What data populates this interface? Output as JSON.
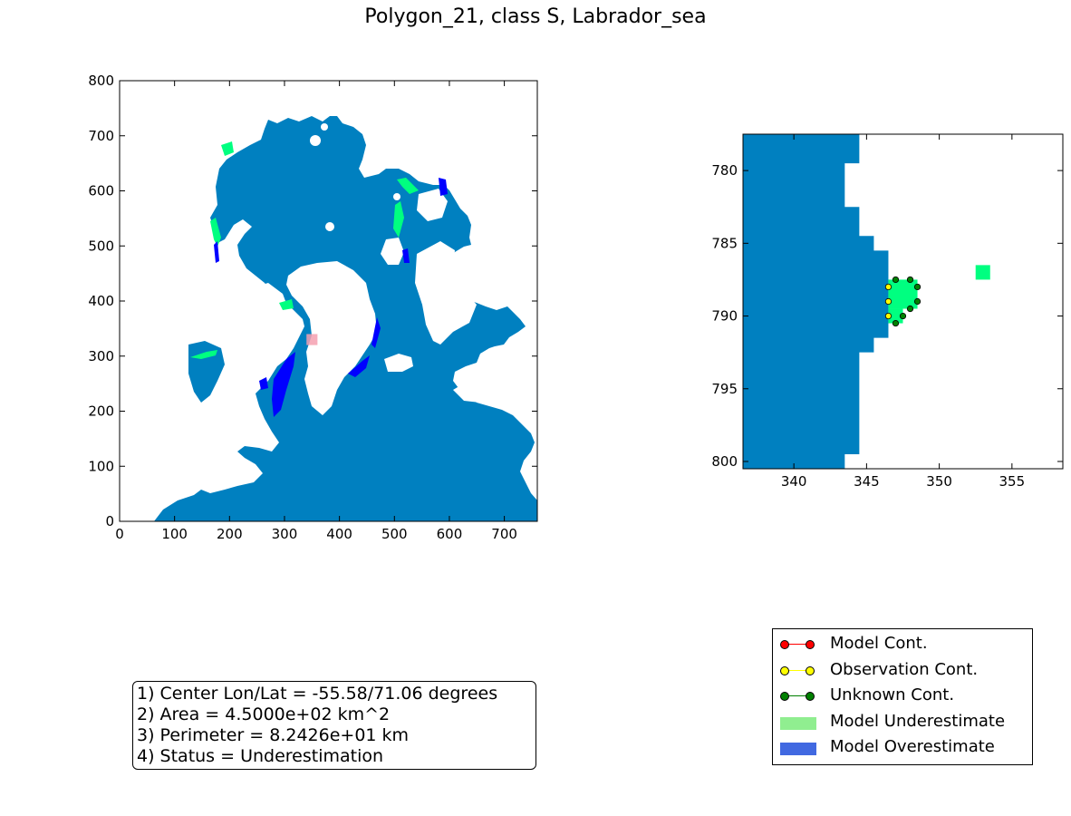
{
  "title": "Polygon_21, class S, Labrador_sea",
  "colors": {
    "ocean": "#0080c0",
    "underestimate": "#00ff80",
    "overestimate": "#0000ff",
    "marker": "#f4a0b0",
    "legend_model_cont": "#ff0000",
    "legend_obs_cont": "#ffff00",
    "legend_unknown_cont": "#008000",
    "legend_model_under": "#90ee90",
    "legend_model_over": "#4169e1"
  },
  "chart_data": [
    {
      "type": "heatmap",
      "name": "overview-map",
      "xlim": [
        0,
        760
      ],
      "ylim": [
        0,
        800
      ],
      "xticks": [
        0,
        100,
        200,
        300,
        400,
        500,
        600,
        700
      ],
      "yticks": [
        0,
        100,
        200,
        300,
        400,
        500,
        600,
        700,
        800
      ],
      "grid": false,
      "highlight_box": {
        "x": [
          340,
          360
        ],
        "y": [
          320,
          340
        ]
      }
    },
    {
      "type": "heatmap",
      "name": "zoom-map",
      "xlim": [
        336.5,
        358.5
      ],
      "ylim": [
        800.5,
        777.5
      ],
      "xticks": [
        340,
        345,
        350,
        355
      ],
      "yticks": [
        780,
        785,
        790,
        795,
        800
      ],
      "grid": false,
      "green_patches": [
        {
          "x": [
            346.5,
            348.5
          ],
          "y": [
            787.5,
            789.5
          ]
        },
        {
          "x": [
            346.5,
            347.5
          ],
          "y": [
            789.5,
            790.5
          ]
        },
        {
          "x": [
            352.5,
            353.5
          ],
          "y": [
            786.5,
            787.5
          ]
        }
      ],
      "contour_points": [
        {
          "x": 347.0,
          "y": 787.5,
          "kind": "unknown"
        },
        {
          "x": 348.0,
          "y": 787.5,
          "kind": "unknown"
        },
        {
          "x": 348.5,
          "y": 788.0,
          "kind": "unknown"
        },
        {
          "x": 348.5,
          "y": 789.0,
          "kind": "unknown"
        },
        {
          "x": 348.0,
          "y": 789.5,
          "kind": "unknown"
        },
        {
          "x": 347.5,
          "y": 790.0,
          "kind": "unknown"
        },
        {
          "x": 347.0,
          "y": 790.5,
          "kind": "unknown"
        },
        {
          "x": 346.5,
          "y": 790.0,
          "kind": "observation"
        },
        {
          "x": 346.5,
          "y": 789.0,
          "kind": "observation"
        },
        {
          "x": 346.5,
          "y": 788.0,
          "kind": "observation"
        }
      ]
    }
  ],
  "info": {
    "lines": [
      "1) Center Lon/Lat = -55.58/71.06 degrees",
      "2) Area = 4.5000e+02 km^2",
      "3) Perimeter = 8.2426e+01 km",
      "4) Status = Underestimation"
    ]
  },
  "legend": {
    "entries": [
      {
        "label": "Model Cont.",
        "kind": "line",
        "color_key": "legend_model_cont"
      },
      {
        "label": "Observation Cont.",
        "kind": "line",
        "color_key": "legend_obs_cont"
      },
      {
        "label": "Unknown Cont.",
        "kind": "line",
        "color_key": "legend_unknown_cont"
      },
      {
        "label": "Model Underestimate",
        "kind": "patch",
        "color_key": "legend_model_under"
      },
      {
        "label": "Model Overestimate",
        "kind": "patch",
        "color_key": "legend_model_over"
      }
    ]
  }
}
